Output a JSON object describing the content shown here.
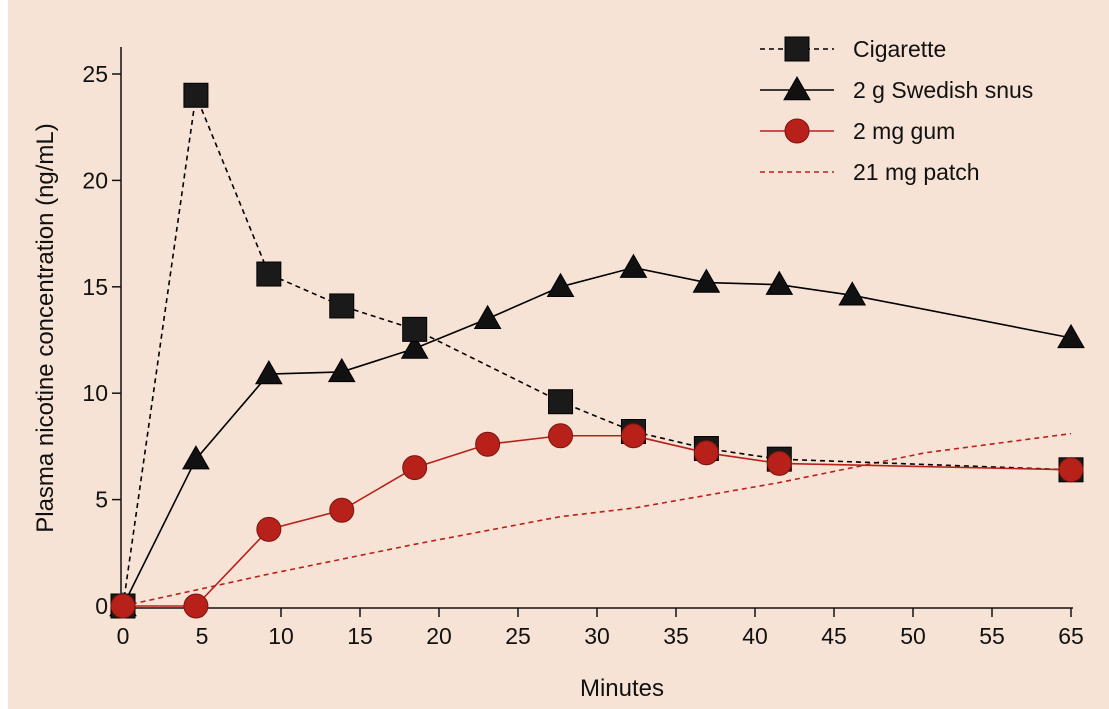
{
  "chart_data": {
    "type": "line",
    "xlabel": "Minutes",
    "ylabel": "Plasma nicotine concentration (ng/mL)",
    "xlim": [
      0,
      65
    ],
    "ylim": [
      0,
      25
    ],
    "x_ticks": [
      "0",
      "5",
      "10",
      "15",
      "20",
      "25",
      "30",
      "35",
      "40",
      "45",
      "50",
      "55",
      "65"
    ],
    "y_ticks": [
      "0",
      "5",
      "10",
      "15",
      "20",
      "25"
    ],
    "grid": false,
    "legend_position": "top-right",
    "background_color": "#f6e3d5",
    "series": [
      {
        "name": "Cigarette",
        "color": "#000000",
        "line_style": "dashed",
        "marker": "square",
        "x": [
          0,
          5,
          10,
          15,
          20,
          30,
          35,
          40,
          45,
          65
        ],
        "y": [
          0,
          24.0,
          15.6,
          14.1,
          13.0,
          9.6,
          8.2,
          7.4,
          6.9,
          6.4
        ]
      },
      {
        "name": "2 g Swedish snus",
        "color": "#000000",
        "line_style": "solid",
        "marker": "triangle",
        "x": [
          0,
          5,
          10,
          15,
          20,
          25,
          30,
          35,
          40,
          45,
          50,
          65
        ],
        "y": [
          0,
          6.9,
          10.9,
          11.0,
          12.1,
          13.5,
          15.0,
          15.9,
          15.2,
          15.1,
          14.6,
          12.6
        ]
      },
      {
        "name": "2 mg gum",
        "color": "#b8211a",
        "line_style": "solid",
        "marker": "circle",
        "x": [
          0,
          5,
          10,
          15,
          20,
          25,
          30,
          35,
          40,
          45,
          65
        ],
        "y": [
          0,
          0,
          3.6,
          4.5,
          6.5,
          7.6,
          8.0,
          8.0,
          7.2,
          6.7,
          6.4
        ]
      },
      {
        "name": "21 mg patch",
        "color": "#b8211a",
        "line_style": "dashed",
        "marker": "none",
        "x": [
          0,
          10,
          20,
          30,
          35,
          40,
          45,
          50,
          55,
          65
        ],
        "y": [
          0,
          1.5,
          2.9,
          4.2,
          4.6,
          5.2,
          5.8,
          6.5,
          7.2,
          8.1
        ]
      }
    ]
  }
}
